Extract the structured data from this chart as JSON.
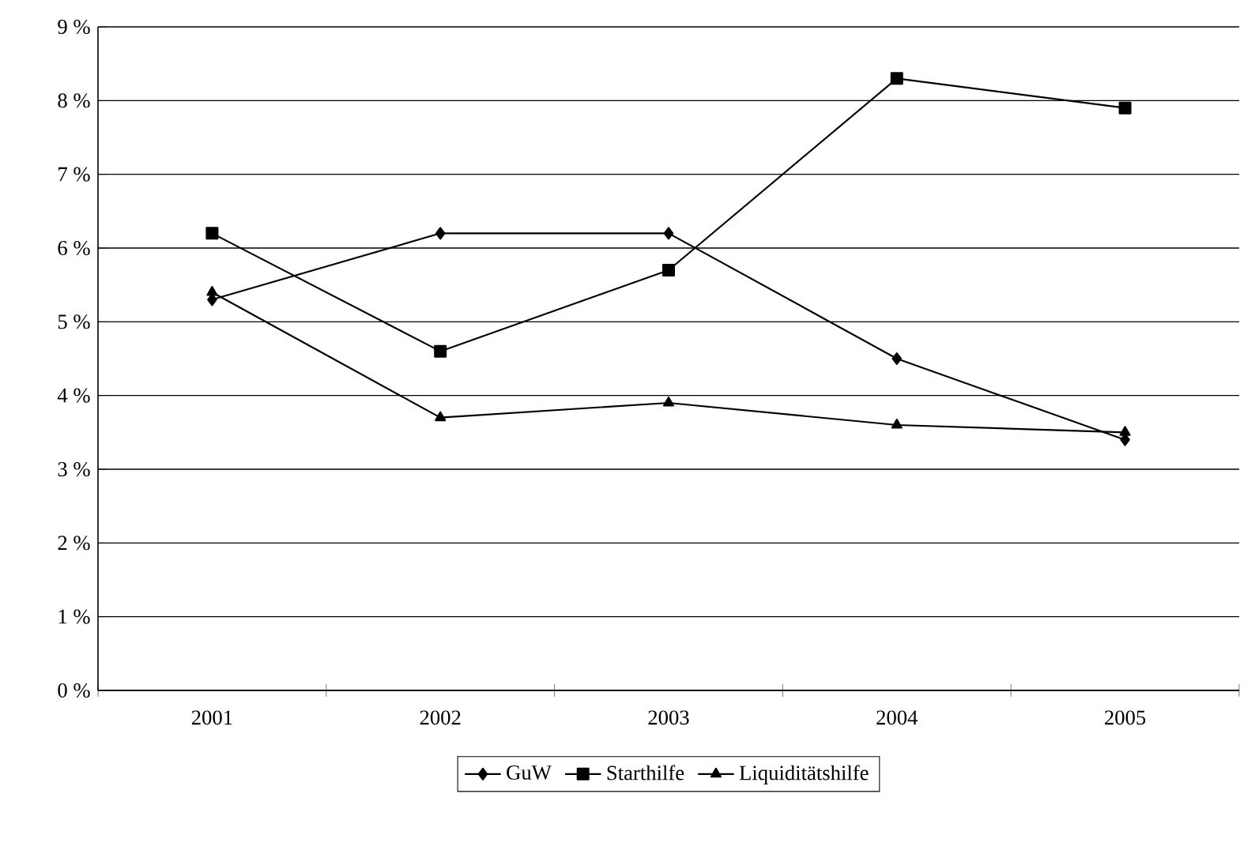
{
  "chart_data": {
    "type": "line",
    "categories": [
      "2001",
      "2002",
      "2003",
      "2004",
      "2005"
    ],
    "series": [
      {
        "name": "GuW",
        "color": "#000000",
        "marker": "diamond",
        "values": [
          5.3,
          6.2,
          6.2,
          4.5,
          3.4
        ]
      },
      {
        "name": "Starthilfe",
        "color": "#000000",
        "marker": "square",
        "values": [
          6.2,
          4.6,
          5.7,
          8.3,
          7.9
        ]
      },
      {
        "name": "Liquiditätshilfe",
        "color": "#000000",
        "marker": "triangle",
        "values": [
          5.4,
          3.7,
          3.9,
          3.6,
          3.5
        ]
      }
    ],
    "ylim": [
      0,
      9
    ],
    "yticks": [
      {
        "value": 0,
        "label": "0 %"
      },
      {
        "value": 1,
        "label": "1 %"
      },
      {
        "value": 2,
        "label": "2 %"
      },
      {
        "value": 3,
        "label": "3 %"
      },
      {
        "value": 4,
        "label": "4 %"
      },
      {
        "value": 5,
        "label": "5 %"
      },
      {
        "value": 6,
        "label": "6 %"
      },
      {
        "value": 7,
        "label": "7 %"
      },
      {
        "value": 8,
        "label": "8 %"
      },
      {
        "value": 9,
        "label": "9 %"
      }
    ],
    "grid": "y",
    "legend": "bottom",
    "line_style": "solid"
  }
}
